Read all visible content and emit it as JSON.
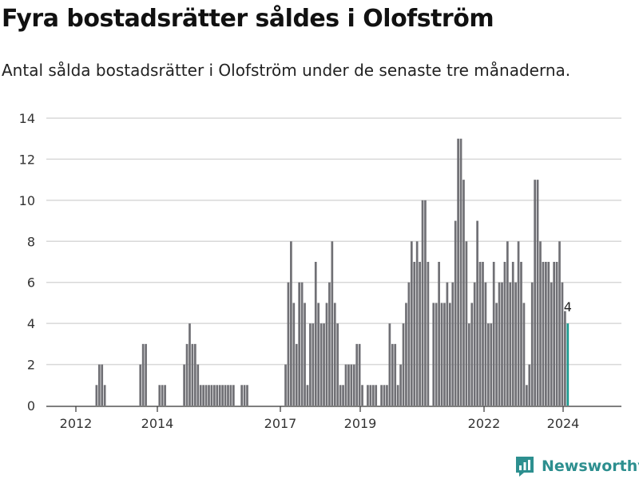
{
  "title": "Fyra bostadsrätter såldes i Olofström",
  "subtitle": "Antal sålda bostadsrätter i Olofström under de senaste tre månaderna.",
  "brand": {
    "name": "Newsworthy"
  },
  "colors": {
    "bar": "#707075",
    "highlight": "#1a9a8f",
    "grid": "#d8d8d8",
    "brand": "#2d8f8f"
  },
  "chart_data": {
    "type": "bar",
    "title": "",
    "xlabel": "",
    "ylabel": "",
    "ylim": [
      0,
      14
    ],
    "yticks": [
      "0",
      "2",
      "4",
      "6",
      "8",
      "10",
      "12",
      "14"
    ],
    "xticks": [
      "2012",
      "2014",
      "2017",
      "2019",
      "2022",
      "2024"
    ],
    "grid": true,
    "series": [
      {
        "values": [
          0,
          0,
          0,
          0,
          0,
          0,
          0,
          1,
          2,
          2,
          1,
          0,
          0,
          0,
          0,
          0,
          0,
          0,
          0,
          0,
          0,
          0,
          0,
          2,
          3,
          3,
          0,
          0,
          0,
          0,
          1,
          1,
          1,
          0,
          0,
          0,
          0,
          0,
          0,
          2,
          3,
          4,
          3,
          3,
          2,
          1,
          1,
          1,
          1,
          1,
          1,
          1,
          1,
          1,
          1,
          1,
          1,
          1,
          0,
          0,
          1,
          1,
          1,
          0,
          0,
          0,
          0,
          0,
          0,
          0,
          0,
          0,
          0,
          0,
          0,
          0,
          2,
          6,
          8,
          5,
          3,
          6,
          6,
          5,
          1,
          4,
          4,
          7,
          5,
          4,
          4,
          5,
          6,
          8,
          5,
          4,
          1,
          1,
          2,
          2,
          2,
          2,
          3,
          3,
          1,
          0,
          1,
          1,
          1,
          1,
          0,
          1,
          1,
          1,
          4,
          3,
          3,
          1,
          2,
          4,
          5,
          6,
          8,
          7,
          8,
          7,
          10,
          10,
          7,
          0,
          5,
          5,
          7,
          5,
          5,
          6,
          5,
          6,
          9,
          13,
          13,
          11,
          8,
          4,
          5,
          6,
          9,
          7,
          7,
          6,
          4,
          4,
          7,
          5,
          6,
          6,
          7,
          8,
          6,
          7,
          6,
          8,
          7,
          5,
          1,
          2,
          6,
          11,
          11,
          8,
          7,
          7,
          7,
          6,
          7,
          7,
          8,
          6,
          4.6,
          4
        ],
        "last_label": "4"
      }
    ]
  }
}
